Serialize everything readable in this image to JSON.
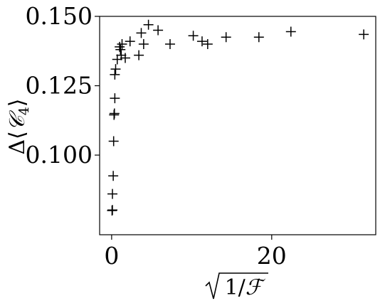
{
  "chart_data": {
    "type": "scatter",
    "marker": "plus",
    "marker_color": "#000000",
    "grid": false,
    "legend": "none",
    "xlim": [
      -1.5,
      33.0
    ],
    "ylim": [
      0.0713,
      0.15
    ],
    "x_ticks": [
      0,
      20
    ],
    "x_tick_labels": [
      "0",
      "20"
    ],
    "y_ticks": [
      0.1,
      0.125,
      0.15
    ],
    "y_tick_labels": [
      "0.100",
      "0.125",
      "0.150"
    ],
    "xlabel": "√(1/ℱ)",
    "ylabel": "Δ⟨𝒞₄⟩",
    "points": [
      {
        "x": 0.05,
        "y": 0.08
      },
      {
        "x": 0.1,
        "y": 0.0802
      },
      {
        "x": 0.1,
        "y": 0.086
      },
      {
        "x": 0.2,
        "y": 0.0925
      },
      {
        "x": 0.25,
        "y": 0.105
      },
      {
        "x": 0.3,
        "y": 0.1145
      },
      {
        "x": 0.35,
        "y": 0.115
      },
      {
        "x": 0.4,
        "y": 0.1205
      },
      {
        "x": 0.4,
        "y": 0.129
      },
      {
        "x": 0.5,
        "y": 0.131
      },
      {
        "x": 0.7,
        "y": 0.1345
      },
      {
        "x": 1.0,
        "y": 0.139
      },
      {
        "x": 1.1,
        "y": 0.138
      },
      {
        "x": 1.2,
        "y": 0.136
      },
      {
        "x": 1.3,
        "y": 0.14
      },
      {
        "x": 1.7,
        "y": 0.135
      },
      {
        "x": 2.3,
        "y": 0.141
      },
      {
        "x": 3.4,
        "y": 0.136
      },
      {
        "x": 3.7,
        "y": 0.144
      },
      {
        "x": 4.0,
        "y": 0.14
      },
      {
        "x": 4.6,
        "y": 0.147
      },
      {
        "x": 5.8,
        "y": 0.145
      },
      {
        "x": 7.3,
        "y": 0.14
      },
      {
        "x": 10.2,
        "y": 0.143
      },
      {
        "x": 11.3,
        "y": 0.141
      },
      {
        "x": 12.0,
        "y": 0.14
      },
      {
        "x": 14.3,
        "y": 0.1425
      },
      {
        "x": 18.4,
        "y": 0.1425
      },
      {
        "x": 22.4,
        "y": 0.1445
      },
      {
        "x": 31.5,
        "y": 0.1435
      }
    ]
  }
}
